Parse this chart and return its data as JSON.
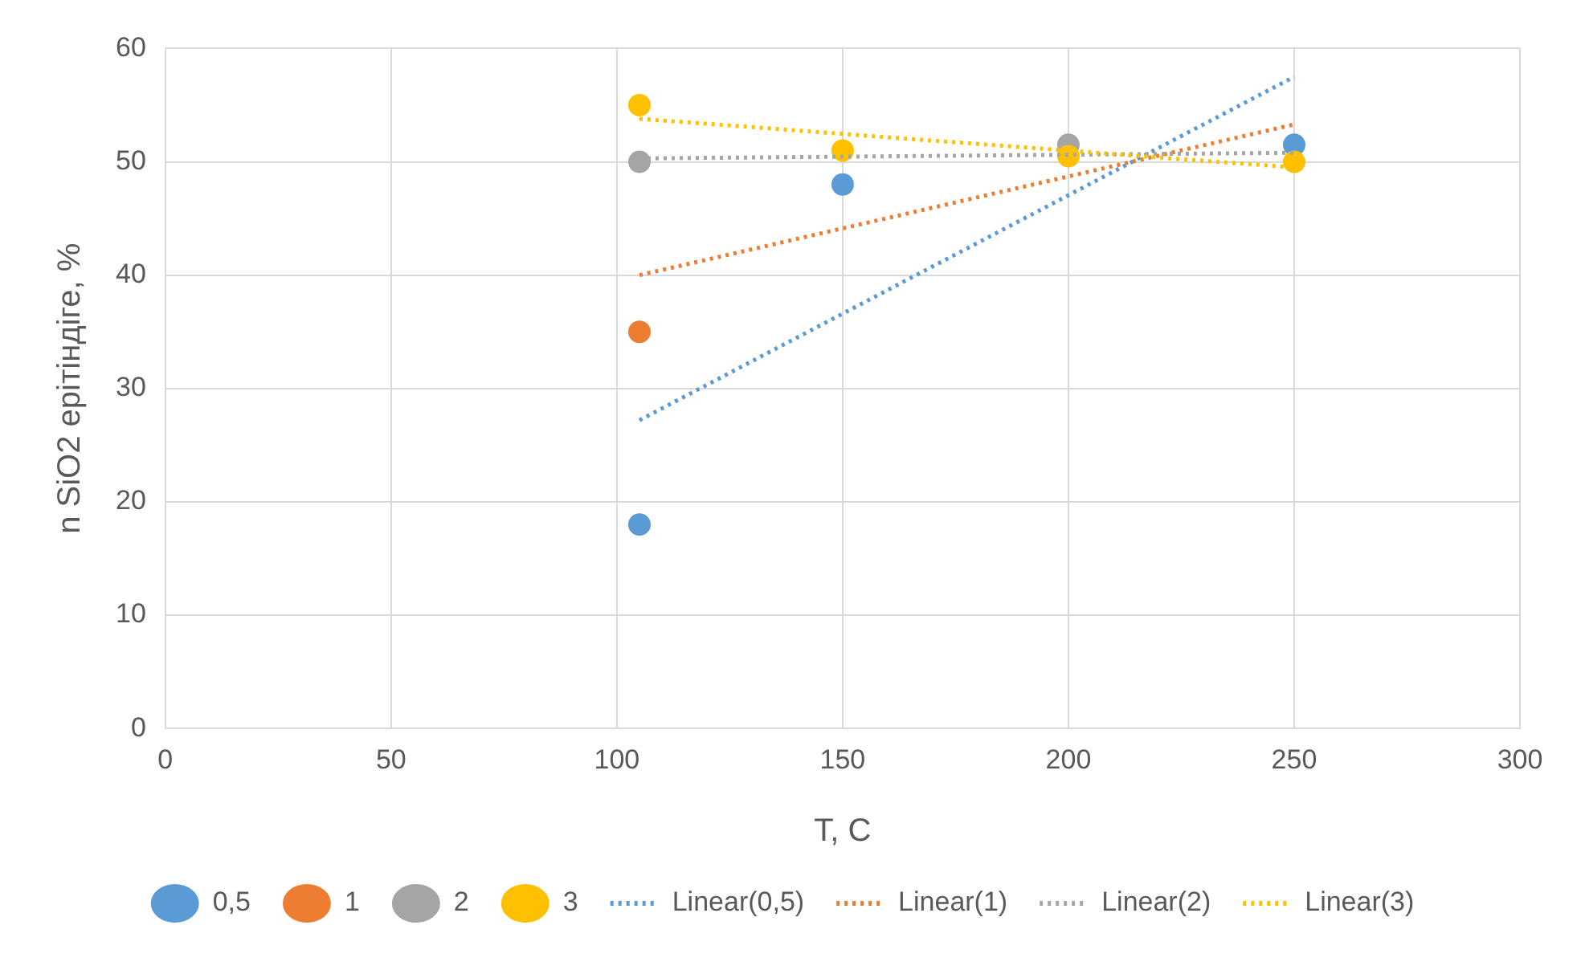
{
  "chart_data": {
    "type": "scatter",
    "xlabel": "T, C",
    "ylabel": "n SiO2 ерітіндіге, %",
    "xlim": [
      0,
      300
    ],
    "xticks": [
      0,
      50,
      100,
      150,
      200,
      250,
      300
    ],
    "ylim": [
      0,
      60
    ],
    "yticks": [
      0,
      10,
      20,
      30,
      40,
      50,
      60
    ],
    "grid": true,
    "legend": "bottom",
    "marker": "circle",
    "series": [
      {
        "name": "0,5",
        "type": "scatter",
        "color": "#5b9bd5",
        "x": [
          105,
          150,
          250
        ],
        "values": [
          18,
          48,
          51.5
        ]
      },
      {
        "name": "1",
        "type": "scatter",
        "color": "#ed7d31",
        "x": [
          105
        ],
        "values": [
          35
        ]
      },
      {
        "name": "2",
        "type": "scatter",
        "color": "#a5a5a5",
        "x": [
          105,
          200
        ],
        "values": [
          50,
          51.5
        ]
      },
      {
        "name": "3",
        "type": "scatter",
        "color": "#ffc000",
        "x": [
          105,
          150,
          200,
          250
        ],
        "values": [
          55,
          51,
          50.5,
          50
        ]
      },
      {
        "name": "Linear(0,5)",
        "type": "line",
        "line_style": "dotted",
        "marker": "none",
        "color": "#5b9bd5",
        "x": [
          105,
          250
        ],
        "values": [
          27.2,
          57.5
        ]
      },
      {
        "name": "Linear(1)",
        "type": "line",
        "line_style": "dotted",
        "marker": "none",
        "color": "#ed7d31",
        "x": [
          105,
          250
        ],
        "values": [
          40,
          53.3
        ]
      },
      {
        "name": "Linear(2)",
        "type": "line",
        "line_style": "dotted",
        "marker": "none",
        "color": "#a5a5a5",
        "x": [
          105,
          250
        ],
        "values": [
          50.3,
          50.8
        ]
      },
      {
        "name": "Linear(3)",
        "type": "line",
        "line_style": "dotted",
        "marker": "none",
        "color": "#ffc000",
        "x": [
          105,
          250
        ],
        "values": [
          53.8,
          49.5
        ]
      }
    ]
  }
}
